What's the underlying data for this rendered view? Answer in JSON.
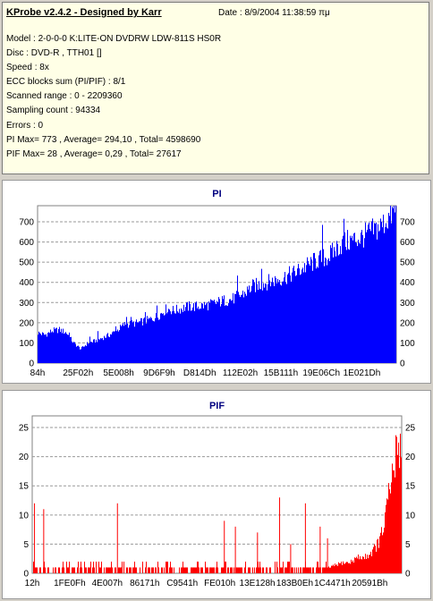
{
  "header": {
    "title": "KProbe v2.4.2 - Designed by Karr",
    "date": "Date : 8/9/2004 11:38:59 πμ"
  },
  "info_lines": [
    "Model : 2-0-0-0 K:LITE-ON DVDRW LDW-811S   HS0R",
    "Disc : DVD-R , TTH01 []",
    "Speed : 8x",
    "ECC blocks sum (PI/PIF) : 8/1",
    "Scanned range : 0 - 2209360",
    "Sampling count : 94334",
    "Errors : 0",
    "PI Max= 773 , Average= 294,10 , Total= 4598690",
    "PIF Max= 28 , Average= 0,29 , Total= 27617"
  ],
  "colors": {
    "pi": "#0000ff",
    "pif": "#ff0000",
    "grid": "#9a9a9a",
    "title": "#000080"
  },
  "chart_data": [
    {
      "type": "area",
      "title": "PI",
      "x_tick_labels": [
        "84h",
        "25F02h",
        "5E008h",
        "9D6F9h",
        "D814Dh",
        "112E02h",
        "15B111h",
        "19E06Ch",
        "1E021Dh"
      ],
      "ylim": [
        0,
        780
      ],
      "y_ticks": [
        0,
        100,
        200,
        300,
        400,
        500,
        600,
        700
      ],
      "grid": true,
      "x_fraction": [
        0.0,
        0.02,
        0.04,
        0.06,
        0.08,
        0.1,
        0.12,
        0.14,
        0.16,
        0.18,
        0.2,
        0.22,
        0.24,
        0.26,
        0.28,
        0.3,
        0.32,
        0.34,
        0.36,
        0.38,
        0.4,
        0.42,
        0.44,
        0.46,
        0.48,
        0.5,
        0.52,
        0.54,
        0.56,
        0.58,
        0.6,
        0.62,
        0.64,
        0.66,
        0.68,
        0.7,
        0.72,
        0.74,
        0.76,
        0.78,
        0.8,
        0.82,
        0.84,
        0.86,
        0.88,
        0.9,
        0.92,
        0.94,
        0.96,
        0.98,
        1.0
      ],
      "values": [
        150,
        140,
        160,
        165,
        150,
        100,
        70,
        100,
        110,
        125,
        140,
        160,
        190,
        195,
        200,
        210,
        220,
        240,
        270,
        260,
        270,
        280,
        280,
        285,
        290,
        300,
        310,
        315,
        330,
        350,
        380,
        390,
        400,
        410,
        420,
        435,
        450,
        470,
        490,
        510,
        520,
        540,
        580,
        600,
        610,
        620,
        640,
        660,
        680,
        720,
        760
      ]
    },
    {
      "type": "bar",
      "title": "PIF",
      "x_tick_labels": [
        "12h",
        "1FE0Fh",
        "4E007h",
        "86171h",
        "C9541h",
        "FE010h",
        "13E128h",
        "183B0Eh",
        "1C4471h",
        "20591Bh"
      ],
      "ylim": [
        0,
        27
      ],
      "y_ticks": [
        0,
        5,
        10,
        15,
        20,
        25
      ],
      "grid": true,
      "x_fraction": [
        0.0,
        0.05,
        0.1,
        0.15,
        0.2,
        0.25,
        0.3,
        0.35,
        0.4,
        0.45,
        0.5,
        0.55,
        0.6,
        0.65,
        0.7,
        0.75,
        0.8,
        0.82,
        0.84,
        0.86,
        0.88,
        0.9,
        0.92,
        0.94,
        0.95,
        0.96,
        0.97,
        0.98,
        0.99,
        1.0
      ],
      "values": [
        1,
        1,
        1,
        1,
        1,
        1,
        1,
        1,
        1,
        1,
        1,
        1,
        1,
        1,
        1,
        1,
        1,
        1.5,
        2,
        2,
        3,
        3,
        4,
        6,
        8,
        12,
        16,
        20,
        24,
        26
      ],
      "spikes": [
        {
          "x": 0.005,
          "v": 12
        },
        {
          "x": 0.03,
          "v": 11
        },
        {
          "x": 0.23,
          "v": 12
        },
        {
          "x": 0.52,
          "v": 9
        },
        {
          "x": 0.55,
          "v": 8
        },
        {
          "x": 0.61,
          "v": 7
        },
        {
          "x": 0.67,
          "v": 13
        },
        {
          "x": 0.7,
          "v": 5
        },
        {
          "x": 0.74,
          "v": 12
        },
        {
          "x": 0.78,
          "v": 8
        },
        {
          "x": 0.8,
          "v": 6
        }
      ]
    }
  ]
}
